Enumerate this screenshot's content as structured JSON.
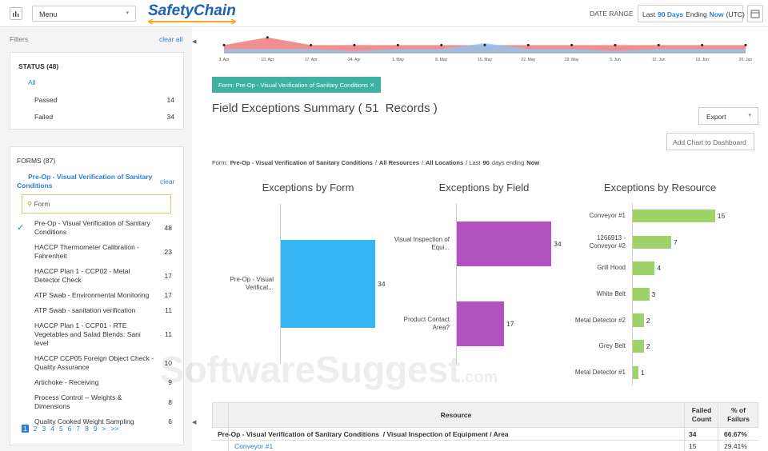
{
  "header": {
    "menu": "Menu",
    "logo": "SafetyChain",
    "date_range_label": "DATE RANGE",
    "date_range": [
      {
        "text": "Last"
      },
      {
        "text": "90 Days",
        "bold": true
      },
      {
        "text": "Ending"
      },
      {
        "text": "Now",
        "bold": true
      },
      {
        "text": "(UTC)"
      }
    ]
  },
  "sidebar": {
    "filters": "Filters",
    "clear_all": "clear all",
    "status": {
      "title": "STATUS (48)",
      "all": "All",
      "items": [
        {
          "label": "Passed",
          "count": 14
        },
        {
          "label": "Failed",
          "count": 34
        }
      ]
    },
    "forms": {
      "title": "FORMS (87)",
      "selected": "Pre-Op - Visual Verification of Sanitary Conditions",
      "clear": "clear",
      "search_placeholder": "Form",
      "items": [
        {
          "label": "Pre-Op - Visual Verification of Sanitary Conditions",
          "count": 48,
          "checked": true
        },
        {
          "label": "HACCP Thermometer Calibration - Fahrenheit",
          "count": 23
        },
        {
          "label": "HACCP Plan 1 - CCP02 - Metal Detector Check",
          "count": 17
        },
        {
          "label": "ATP Swab - Environmental Monitoring",
          "count": 17
        },
        {
          "label": "ATP Swab - sanitation verification",
          "count": 11
        },
        {
          "label": "HACCP Plan 1 - CCP01 - RTE Vegetables and Salad Blends: Sani level",
          "count": 11
        },
        {
          "label": "HACCP CCP05 Foreign Object Check - Quality Assurance",
          "count": 10
        },
        {
          "label": "Artichoke - Receiving",
          "count": 9
        },
        {
          "label": "Process Control -- Weights & Dimensions",
          "count": 8
        },
        {
          "label": "Quality Cooked Weight Sampling",
          "count": 6
        }
      ],
      "pages": [
        "1",
        "2",
        "3",
        "4",
        "5",
        "6",
        "7",
        "8",
        "9",
        ">",
        ">>"
      ]
    }
  },
  "timeline": {
    "type": "area",
    "x": [
      "3. Apr",
      "10. Apr",
      "17. Apr",
      "24. Apr",
      "1. May",
      "8. May",
      "15. May",
      "22. May",
      "29. May",
      "5. Jun",
      "12. Jun",
      "19. Jun",
      "26. Jun"
    ],
    "ylim": [
      0,
      5
    ],
    "series": [
      {
        "color": "#ee7b7b",
        "values": [
          2,
          4,
          2,
          2,
          2,
          2,
          2,
          2,
          2,
          2,
          2,
          2,
          2
        ]
      },
      {
        "color": "#93c4ee",
        "values": [
          1,
          1,
          1,
          0.5,
          1,
          1,
          2.5,
          1,
          1,
          0.5,
          1,
          1,
          1
        ]
      }
    ]
  },
  "filter_chip": "Form: Pre-Op - Visual Verification of Sanitary Conditions",
  "summary": {
    "title": "Field Exceptions Summary ( 51  Records )",
    "export": "Export",
    "add_chart": "Add Chart to Dashboard",
    "breadcrumb": [
      {
        "text": "Form:"
      },
      {
        "text": "Pre-Op - Visual Verification of Sanitary Conditions",
        "bold": true
      },
      {
        "text": "/"
      },
      {
        "text": "All Resources",
        "bold": true
      },
      {
        "text": "/"
      },
      {
        "text": "All Locations",
        "bold": true
      },
      {
        "text": "/ Last"
      },
      {
        "text": "90",
        "bold": true
      },
      {
        "text": "days ending"
      },
      {
        "text": "Now",
        "bold": true
      }
    ]
  },
  "chart_data": [
    {
      "type": "bar",
      "title": "Exceptions by Form",
      "categories": [
        "Pre-Op - Visual Verificat..."
      ],
      "values": [
        34
      ],
      "color": "#35b6f3",
      "xlim": [
        0,
        40
      ]
    },
    {
      "type": "bar",
      "title": "Exceptions by Field",
      "categories": [
        "Visual Inspection of Equi...",
        "Product Contact Area?"
      ],
      "values": [
        34,
        17
      ],
      "color": "#b251bf",
      "xlim": [
        0,
        40
      ]
    },
    {
      "type": "bar",
      "title": "Exceptions by Resource",
      "categories": [
        "Conveyor #1",
        "1266913 - Conveyor #2",
        "Grill Hood",
        "White Belt",
        "Metal Detector #2",
        "Grey Belt",
        "Metal Detector #1"
      ],
      "values": [
        15,
        7,
        4,
        3,
        2,
        2,
        1
      ],
      "color": "#9ed36a",
      "xlim": [
        0,
        20
      ]
    }
  ],
  "table": {
    "headers": [
      "Resource",
      "Failed Count",
      "% of Failurs"
    ],
    "group": {
      "label": "Pre-Op - Visual Verification of Sanitary Conditions  / Visual Inspection of Equipment / Area",
      "count": 34,
      "percent": "66.67%"
    },
    "rows": [
      {
        "label": "Conveyor #1",
        "count": 15,
        "percent": "29.41%"
      }
    ]
  },
  "watermark": {
    "main": "SoftwareSuggest",
    "suffix": ".com"
  }
}
